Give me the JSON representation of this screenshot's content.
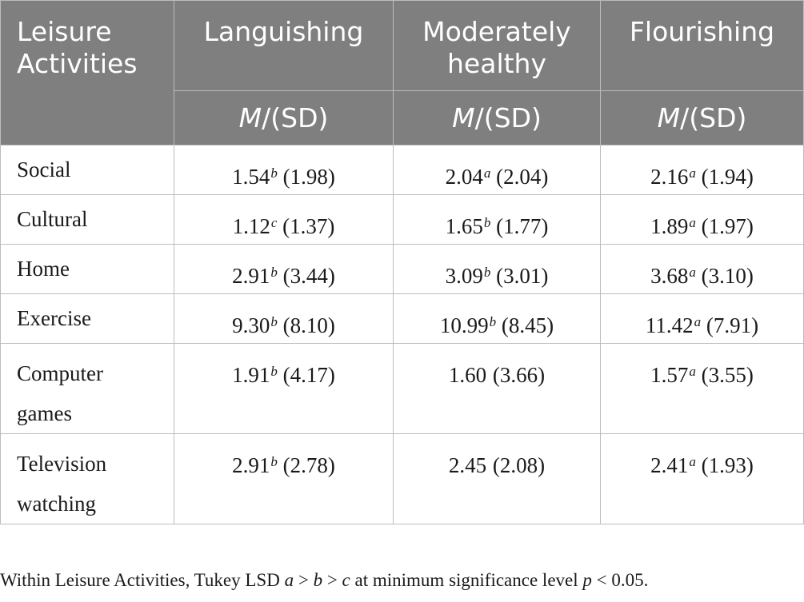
{
  "table": {
    "header": {
      "row_label": "Leisure Activities",
      "groups": [
        "Languishing",
        "Moderately healthy",
        "Flourishing"
      ],
      "stat_italic": "M",
      "stat_rest": "/(SD)"
    },
    "rows": [
      {
        "label": "Social",
        "cells": [
          {
            "mean": "1.54",
            "sup": "b",
            "sd": " (1.98)"
          },
          {
            "mean": "2.04",
            "sup": "a",
            "sd": " (2.04)"
          },
          {
            "mean": "2.16",
            "sup": "a",
            "sd": " (1.94)"
          }
        ]
      },
      {
        "label": "Cultural",
        "cells": [
          {
            "mean": "1.12",
            "sup": "c",
            "sd": " (1.37)"
          },
          {
            "mean": "1.65",
            "sup": "b",
            "sd": " (1.77)"
          },
          {
            "mean": "1.89",
            "sup": "a",
            "sd": " (1.97)"
          }
        ]
      },
      {
        "label": "Home",
        "cells": [
          {
            "mean": "2.91",
            "sup": "b",
            "sd": " (3.44)"
          },
          {
            "mean": "3.09",
            "sup": "b",
            "sd": " (3.01)"
          },
          {
            "mean": "3.68",
            "sup": "a",
            "sd": " (3.10)"
          }
        ]
      },
      {
        "label": "Exercise",
        "cells": [
          {
            "mean": "9.30",
            "sup": "b",
            "sd": " (8.10)"
          },
          {
            "mean": "10.99",
            "sup": "b",
            "sd": " (8.45)"
          },
          {
            "mean": "11.42",
            "sup": "a",
            "sd": " (7.91)"
          }
        ]
      },
      {
        "label": "Computer games",
        "cells": [
          {
            "mean": "1.91",
            "sup": "b",
            "sd": " (4.17)"
          },
          {
            "mean": "1.60",
            "sup": "",
            "sd": " (3.66)"
          },
          {
            "mean": "1.57",
            "sup": "a",
            "sd": " (3.55)"
          }
        ]
      },
      {
        "label": "Television watching",
        "cells": [
          {
            "mean": "2.91",
            "sup": "b",
            "sd": " (2.78)"
          },
          {
            "mean": "2.45",
            "sup": "",
            "sd": " (2.08)"
          },
          {
            "mean": "2.41",
            "sup": "a",
            "sd": " (1.93)"
          }
        ]
      }
    ]
  },
  "footnote": {
    "text1": "Within Leisure Activities, Tukey LSD ",
    "a": "a",
    "gt1": " > ",
    "b": "b",
    "gt2": " > ",
    "c": "c",
    "text2": " at minimum significance level ",
    "p": "p",
    "text3": " < 0.05."
  }
}
